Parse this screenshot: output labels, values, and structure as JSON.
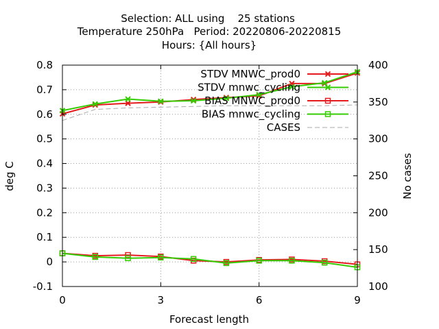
{
  "chart_data": {
    "type": "line",
    "title_lines": [
      "Selection: ALL using    25 stations",
      "Temperature 250hPa   Period: 20220806-20220815",
      "Hours: {All hours}"
    ],
    "xlabel": "Forecast length",
    "ylabel": "deg C",
    "y2label": "No cases",
    "xlim": [
      0,
      9
    ],
    "ylim": [
      -0.1,
      0.8
    ],
    "y2lim": [
      100,
      400
    ],
    "xticks": [
      "0",
      "3",
      "6",
      "9"
    ],
    "yticks": [
      "-0.1",
      "0",
      "0.1",
      "0.2",
      "0.3",
      "0.4",
      "0.5",
      "0.6",
      "0.7",
      "0.8"
    ],
    "y2ticks": [
      "100",
      "150",
      "200",
      "250",
      "300",
      "350",
      "400"
    ],
    "grid": true,
    "legend_position": "top-right",
    "x": [
      0,
      1,
      2,
      3,
      4,
      5,
      6,
      7,
      8,
      9
    ],
    "series": [
      {
        "name": "STDV MNWC_prod0",
        "color": "#e41a1c",
        "marker": "x",
        "axis": "y1",
        "values": [
          0.602,
          0.638,
          0.645,
          0.65,
          0.66,
          0.668,
          0.675,
          0.725,
          0.725,
          0.768
        ]
      },
      {
        "name": "STDV mnwc_cycling",
        "color": "#33cc00",
        "marker": "x",
        "axis": "y1",
        "values": [
          0.615,
          0.642,
          0.662,
          0.653,
          0.655,
          0.665,
          0.68,
          0.712,
          0.728,
          0.773
        ]
      },
      {
        "name": "BIAS MNWC_prod0",
        "color": "#e41a1c",
        "marker": "square",
        "axis": "y1",
        "values": [
          0.035,
          0.025,
          0.028,
          0.022,
          0.005,
          0.0,
          0.008,
          0.01,
          0.003,
          -0.01
        ]
      },
      {
        "name": "BIAS mnwc_cycling",
        "color": "#33cc00",
        "marker": "square",
        "axis": "y1",
        "values": [
          0.035,
          0.02,
          0.015,
          0.018,
          0.012,
          -0.005,
          0.005,
          0.005,
          -0.003,
          -0.022
        ]
      },
      {
        "name": "CASES",
        "color": "#aaaaaa",
        "marker": "none",
        "dashed": true,
        "axis": "y2",
        "values": [
          325,
          340,
          342,
          343,
          344,
          345,
          345,
          345,
          345,
          346
        ]
      }
    ]
  }
}
